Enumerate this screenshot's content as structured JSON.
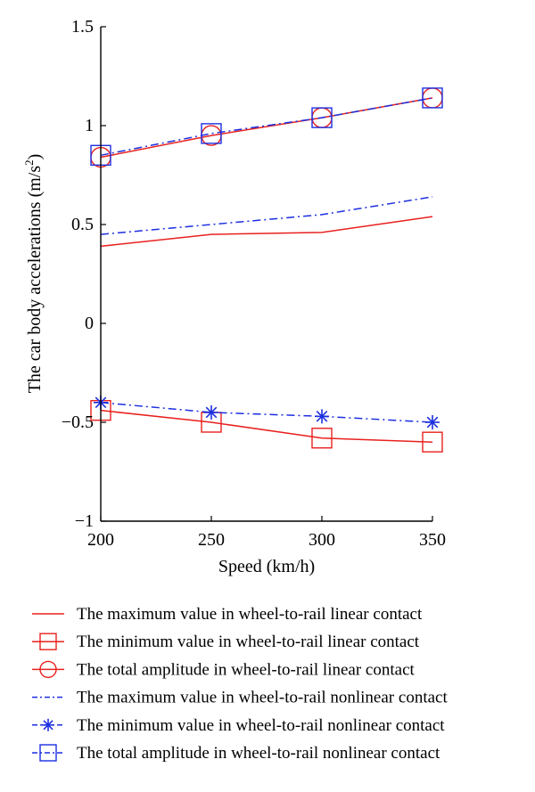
{
  "chart_data": {
    "type": "line",
    "title": "",
    "xlabel": "Speed (km/h)",
    "ylabel": "The car body accelerations (m/s",
    "ylabel_sup": "2",
    "ylabel_close": ")",
    "x": [
      200,
      250,
      300,
      350
    ],
    "xlim": [
      200,
      350
    ],
    "ylim": [
      -1,
      1.5
    ],
    "xticks": [
      200,
      250,
      300,
      350
    ],
    "yticks": [
      -1,
      -0.5,
      0,
      0.5,
      1,
      1.5
    ],
    "ytick_labels": [
      "−1",
      "−0.5",
      "0",
      "0.5",
      "1",
      "1.5"
    ],
    "grid": false,
    "legend_position": "bottom",
    "series": [
      {
        "name": "The maximum value in wheel-to-rail linear contact",
        "values": [
          0.39,
          0.45,
          0.46,
          0.54
        ],
        "color": "#e8211e",
        "dash": "solid",
        "marker": "none"
      },
      {
        "name": "The minimum value in wheel-to-rail linear contact",
        "values": [
          -0.44,
          -0.5,
          -0.58,
          -0.6
        ],
        "color": "#e8211e",
        "dash": "solid",
        "marker": "square"
      },
      {
        "name": "The total amplitude in wheel-to-rail linear contact",
        "values": [
          0.84,
          0.95,
          1.04,
          1.14
        ],
        "color": "#e8211e",
        "dash": "solid",
        "marker": "circle"
      },
      {
        "name": "The maximum value in wheel-to-rail nonlinear contact",
        "values": [
          0.45,
          0.5,
          0.55,
          0.64
        ],
        "color": "#1c2fe0",
        "dash": "dashdot",
        "marker": "none"
      },
      {
        "name": "The minimum value in wheel-to-rail nonlinear contact",
        "values": [
          -0.4,
          -0.45,
          -0.47,
          -0.5
        ],
        "color": "#1c2fe0",
        "dash": "dashdot",
        "marker": "star"
      },
      {
        "name": "The total amplitude in wheel-to-rail nonlinear contact",
        "values": [
          0.85,
          0.96,
          1.04,
          1.14
        ],
        "color": "#1c2fe0",
        "dash": "dashdot",
        "marker": "square"
      }
    ]
  }
}
